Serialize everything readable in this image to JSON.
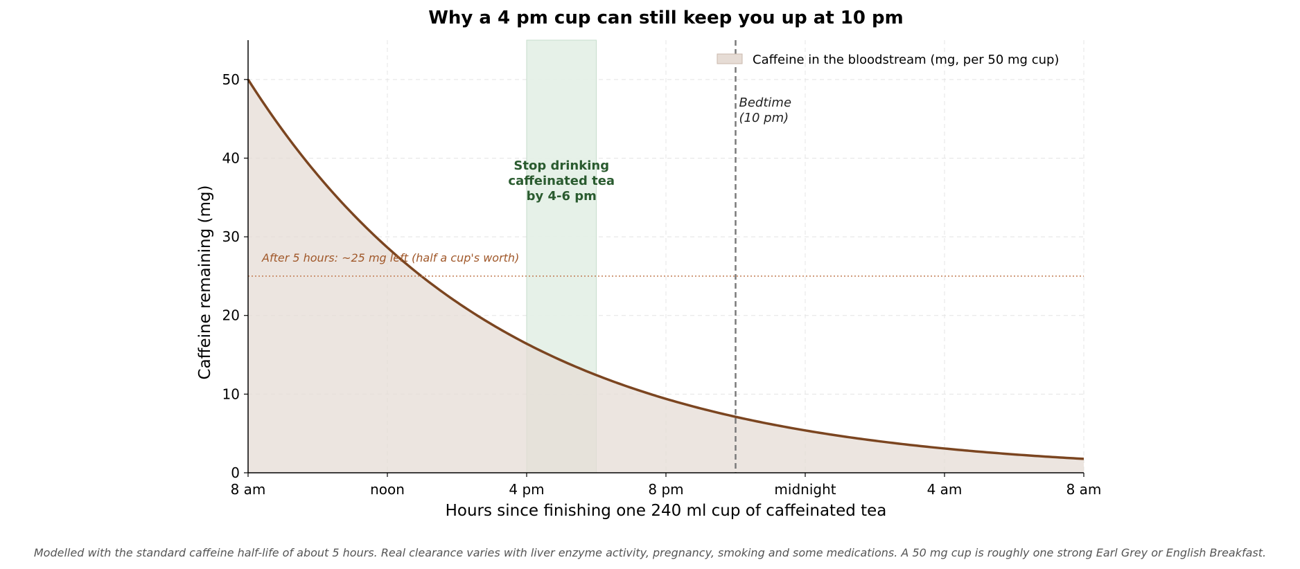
{
  "chart_data": {
    "type": "area",
    "title": "Why a 4 pm cup can still keep you up at 10 pm",
    "xlabel": "Hours since finishing one 240 ml cup of caffeinated tea",
    "ylabel": "Caffeine remaining (mg)",
    "xlim": [
      0,
      24
    ],
    "ylim": [
      0,
      55
    ],
    "x_ticks": [
      0,
      4,
      8,
      12,
      16,
      20,
      24
    ],
    "x_tick_labels": [
      "8 am",
      "noon",
      "4 pm",
      "8 pm",
      "midnight",
      "4 am",
      "8 am"
    ],
    "y_ticks": [
      0,
      10,
      20,
      30,
      40,
      50
    ],
    "y_tick_labels": [
      "0",
      "10",
      "20",
      "30",
      "40",
      "50"
    ],
    "grid": true,
    "legend_position": "top-right",
    "series": [
      {
        "name": "Caffeine in the bloodstream (mg, per 50 mg cup)",
        "color": "#7b4520",
        "fill_color": "#e6dcd5",
        "x": [
          0,
          1,
          2,
          3,
          4,
          5,
          6,
          7,
          8,
          9,
          10,
          11,
          12,
          13,
          14,
          15,
          16,
          17,
          18,
          19,
          20,
          21,
          22,
          23,
          24
        ],
        "y": [
          50.0,
          43.5,
          37.9,
          33.0,
          28.7,
          25.0,
          21.8,
          18.9,
          16.5,
          14.4,
          12.5,
          10.9,
          9.5,
          8.2,
          7.2,
          6.3,
          5.4,
          4.7,
          4.1,
          3.6,
          3.1,
          2.7,
          2.4,
          2.1,
          1.8
        ]
      }
    ],
    "shaded_region": {
      "x_start": 8,
      "x_end": 10,
      "color": "#e3efe6",
      "label_lines": [
        "Stop drinking",
        "caffeinated tea",
        "by 4-6 pm"
      ]
    },
    "bedtime_line": {
      "x": 14,
      "label_lines": [
        "Bedtime",
        "(10 pm)"
      ],
      "color": "#7a7a7a"
    },
    "reference_line": {
      "y": 25,
      "color": "#c07a50",
      "label": "After 5 hours: ~25 mg left (half a cup's worth)"
    },
    "caption": "Modelled with the standard caffeine half-life of about 5 hours. Real clearance varies with liver enzyme activity, pregnancy, smoking and some medications. A 50 mg cup is roughly one strong Earl Grey or English Breakfast."
  }
}
